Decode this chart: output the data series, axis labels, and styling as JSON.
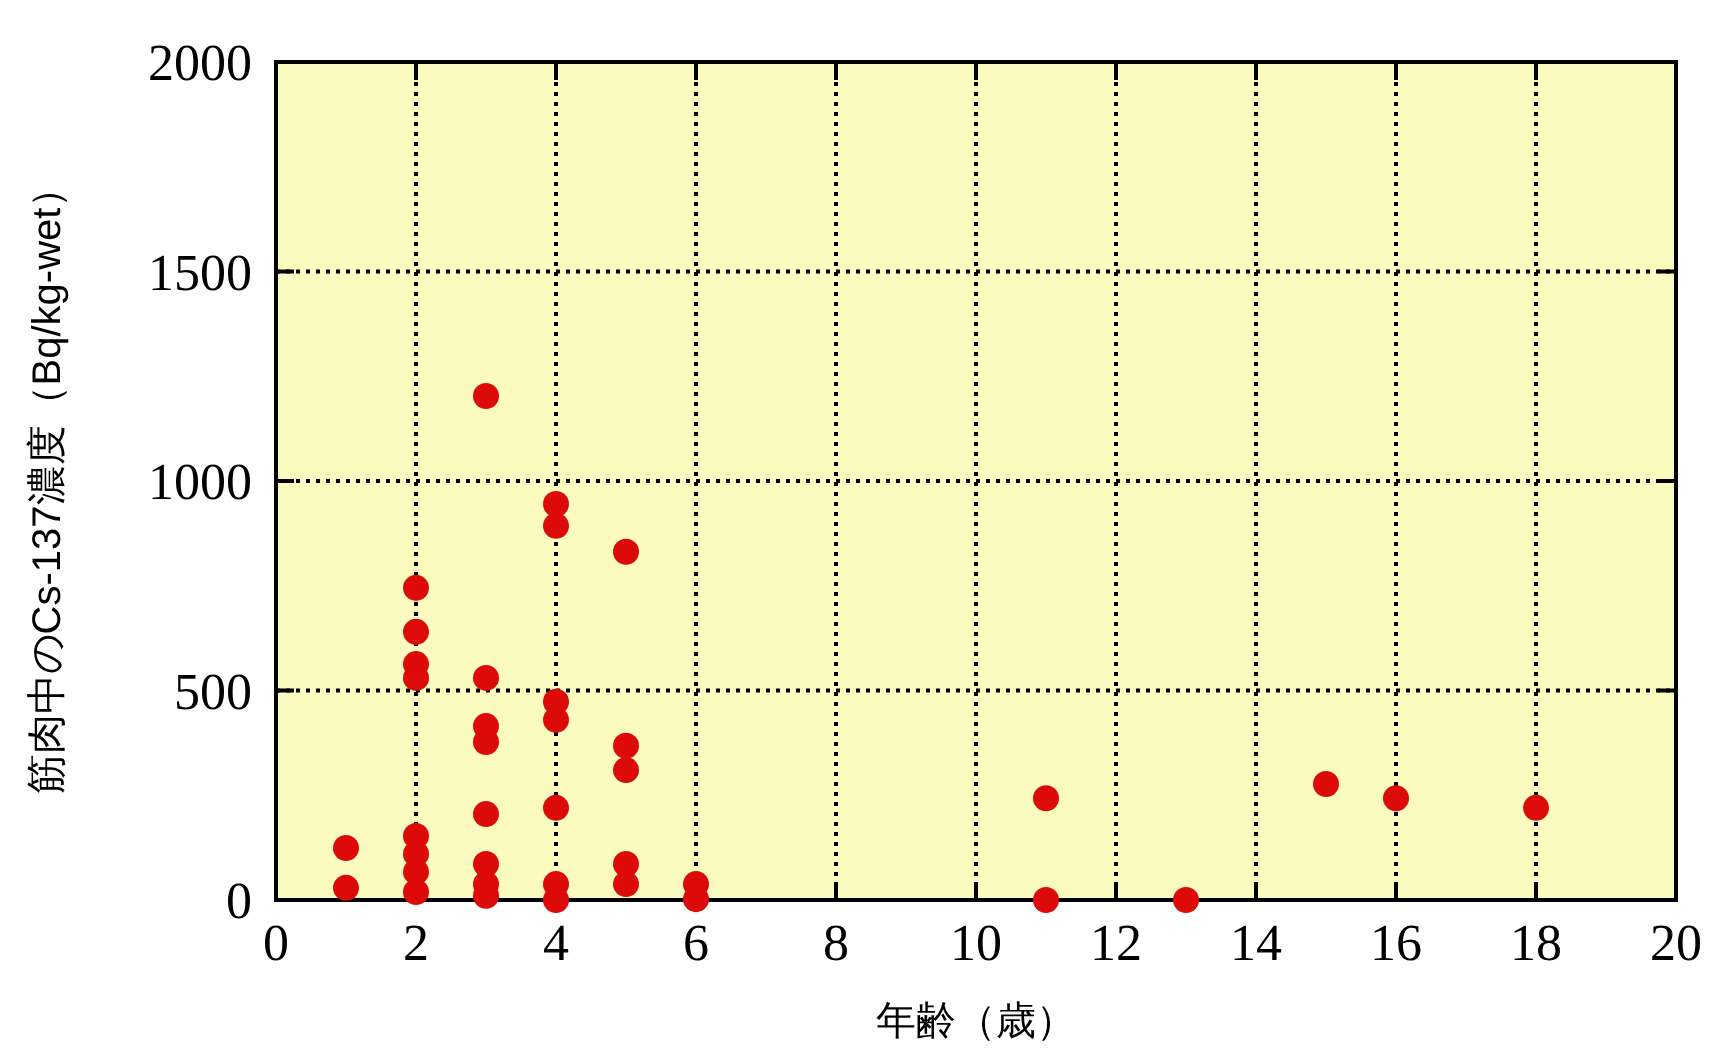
{
  "chart_data": {
    "type": "scatter",
    "xlabel": "年齢（歳）",
    "ylabel": "筋肉中のCs-137濃度（Bq/kg-wet）",
    "xlim": [
      0,
      20
    ],
    "xticks": [
      0,
      2,
      4,
      6,
      8,
      10,
      12,
      14,
      16,
      18,
      20
    ],
    "ylim": [
      0,
      2000
    ],
    "yticks": [
      0,
      500,
      1000,
      1500,
      2000
    ],
    "grid": true,
    "marker": "circle",
    "series": [
      {
        "color": "#dd0a0a",
        "x": [
          1,
          1,
          2,
          2,
          2,
          2,
          2,
          2,
          2,
          2,
          3,
          3,
          3,
          3,
          3,
          3,
          3,
          3,
          4,
          4,
          4,
          4,
          4,
          4,
          4,
          5,
          5,
          5,
          5,
          5,
          6,
          6,
          11,
          11,
          13,
          15,
          16,
          18
        ],
        "values": [
          124,
          29,
          745,
          640,
          563,
          530,
          153,
          110,
          67,
          19,
          1203,
          530,
          415,
          377,
          205,
          86,
          38,
          10,
          945,
          893,
          473,
          430,
          220,
          38,
          0,
          831,
          368,
          310,
          86,
          38,
          38,
          2,
          243,
          0,
          0,
          277,
          243,
          220
        ]
      }
    ]
  }
}
